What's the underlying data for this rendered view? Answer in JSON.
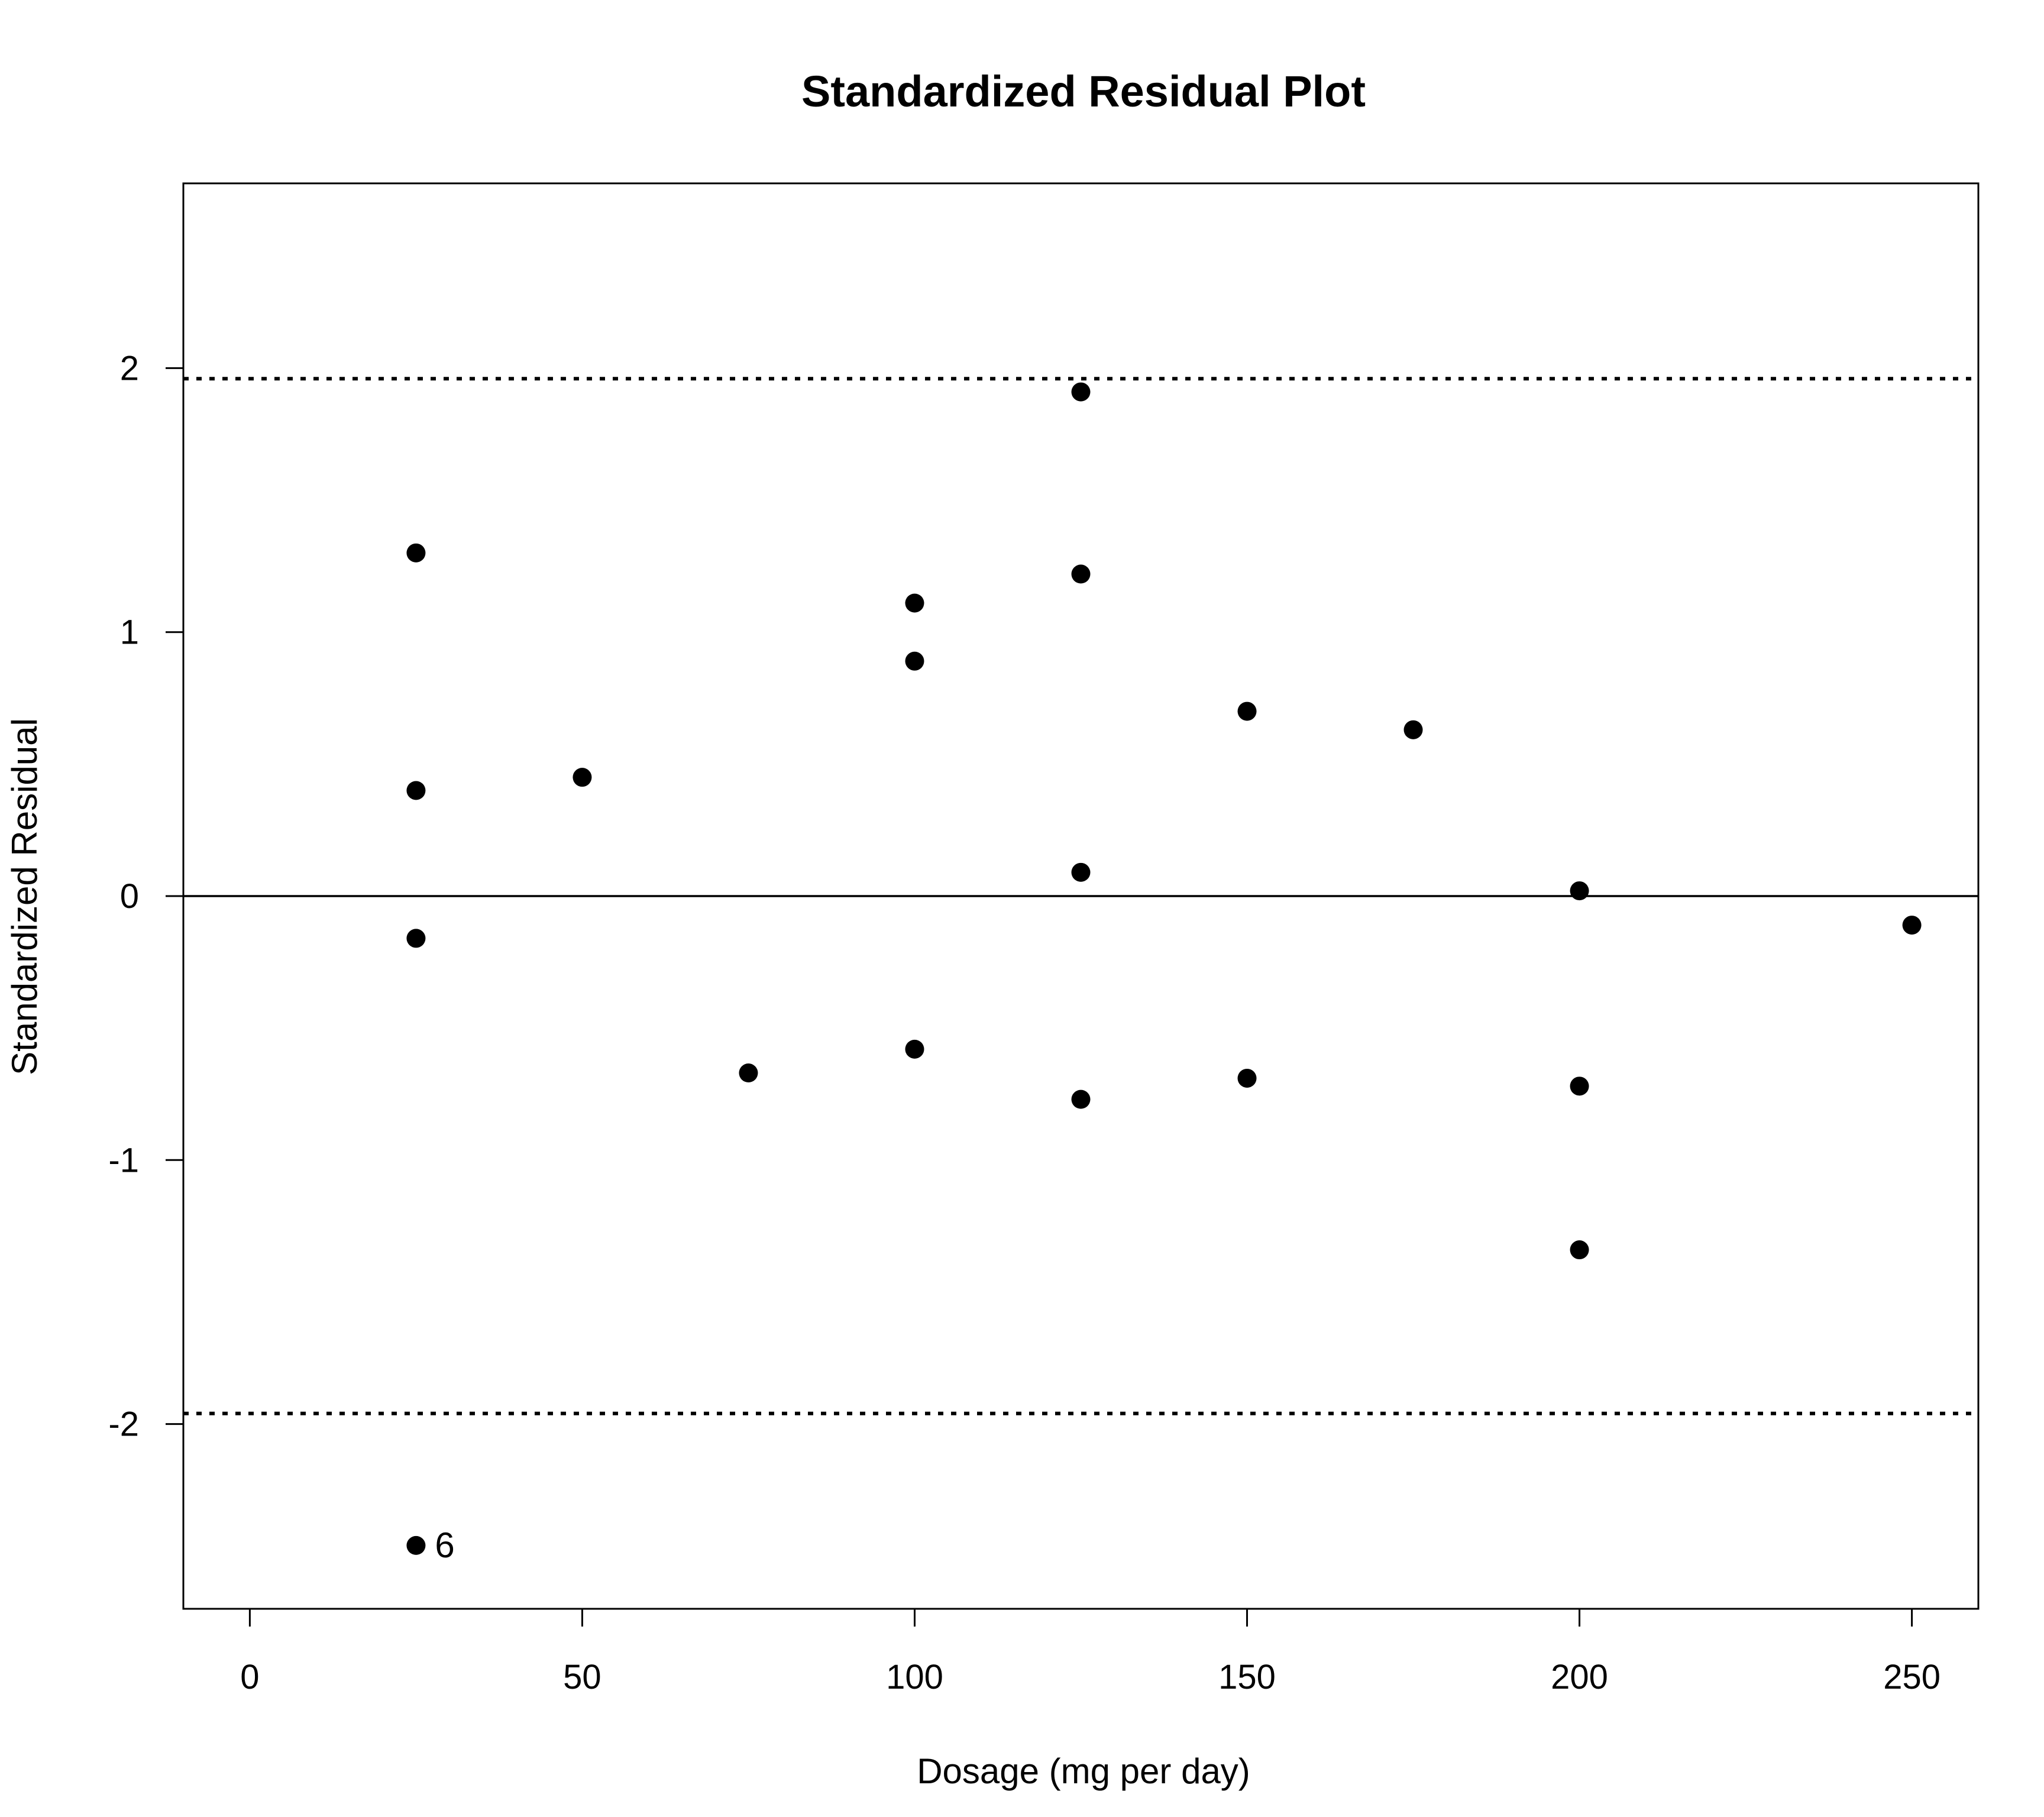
{
  "chart_data": {
    "type": "scatter",
    "title": "Standardized Residual Plot",
    "xlabel": "Dosage (mg per day)",
    "ylabel": "Standardized Residual",
    "xlim": [
      -10,
      260
    ],
    "ylim": [
      -2.7,
      2.7
    ],
    "xticks": [
      0,
      50,
      100,
      150,
      200,
      250
    ],
    "yticks": [
      -2,
      -1,
      0,
      1,
      2
    ],
    "grid": false,
    "legend": "none",
    "colors": {
      "points": "#000000",
      "lines": "#000000",
      "background": "#ffffff"
    },
    "reference_lines": [
      {
        "y": 1.96,
        "style": "dotted"
      },
      {
        "y": -1.96,
        "style": "dotted"
      },
      {
        "y": 0,
        "style": "solid"
      }
    ],
    "points": [
      {
        "x": 25,
        "y": 1.3
      },
      {
        "x": 25,
        "y": 0.4
      },
      {
        "x": 25,
        "y": -0.16
      },
      {
        "x": 25,
        "y": -2.46,
        "label": "6"
      },
      {
        "x": 50,
        "y": 0.45
      },
      {
        "x": 75,
        "y": -0.67
      },
      {
        "x": 100,
        "y": 1.11
      },
      {
        "x": 100,
        "y": 0.89
      },
      {
        "x": 100,
        "y": -0.58
      },
      {
        "x": 125,
        "y": 1.91
      },
      {
        "x": 125,
        "y": 1.22
      },
      {
        "x": 125,
        "y": 0.09
      },
      {
        "x": 125,
        "y": -0.77
      },
      {
        "x": 150,
        "y": 0.7
      },
      {
        "x": 150,
        "y": -0.69
      },
      {
        "x": 175,
        "y": 0.63
      },
      {
        "x": 200,
        "y": 0.02
      },
      {
        "x": 200,
        "y": -0.72
      },
      {
        "x": 200,
        "y": -1.34
      },
      {
        "x": 250,
        "y": -0.11
      }
    ]
  }
}
